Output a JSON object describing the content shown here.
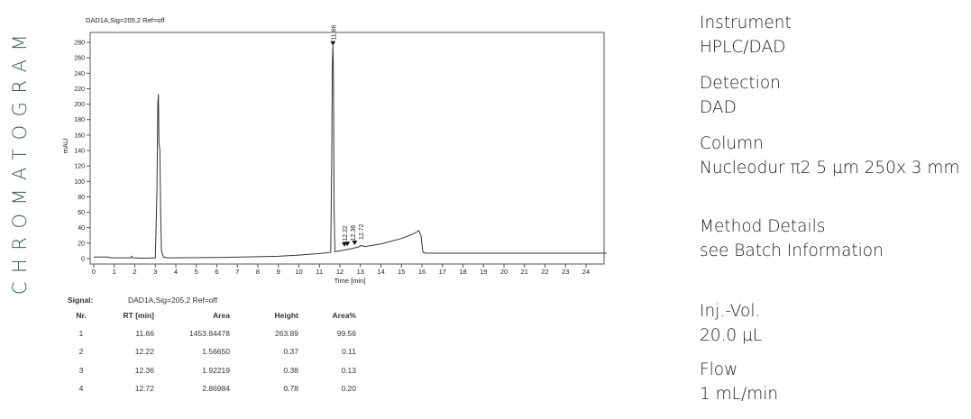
{
  "side_title": "CHROMATOGRAM",
  "chart_data": {
    "type": "line",
    "title": "DAD1A,Sig=205,2  Ref=off",
    "xlabel": "Time [min]",
    "ylabel": "mAU",
    "xlim": [
      0,
      25
    ],
    "ylim": [
      -5,
      295
    ],
    "xticks": [
      0,
      1,
      2,
      3,
      4,
      5,
      6,
      7,
      8,
      9,
      10,
      11,
      12,
      13,
      14,
      15,
      16,
      17,
      18,
      19,
      20,
      21,
      22,
      23,
      24
    ],
    "yticks": [
      0,
      20,
      40,
      60,
      80,
      100,
      120,
      140,
      160,
      180,
      200,
      220,
      240,
      260,
      280
    ],
    "grid": false,
    "series": [
      {
        "x": [
          0,
          0.7,
          0.8,
          1.8,
          1.85,
          1.9,
          2.5,
          3.0,
          3.08,
          3.12,
          3.15,
          3.18,
          3.22,
          3.26,
          3.3,
          3.4,
          3.6,
          4,
          6,
          8,
          9,
          10,
          11,
          11.55,
          11.6,
          11.63,
          11.66,
          11.69,
          11.72,
          11.76,
          11.85,
          12,
          12.5,
          12.9,
          13.05,
          13.2,
          14,
          15,
          15.5,
          15.85,
          15.95,
          16.05,
          16.2,
          17,
          20,
          25
        ],
        "y": [
          2,
          2,
          1,
          1,
          3,
          1,
          0.5,
          1,
          90,
          200,
          213,
          150,
          140,
          60,
          10,
          2,
          1,
          1,
          1.5,
          2.5,
          3,
          4.5,
          6.5,
          8,
          120,
          250,
          277,
          230,
          60,
          9,
          9.5,
          10,
          12.5,
          15,
          17,
          15.5,
          19,
          26,
          31,
          36,
          30,
          8,
          7,
          7,
          7,
          7
        ]
      }
    ],
    "peak_labels": [
      {
        "rt": "11.66",
        "x": 11.66,
        "y": 277
      },
      {
        "rt": "12.22",
        "x": 12.22,
        "y": 12
      },
      {
        "rt": "12.36",
        "x": 12.36,
        "y": 12.5
      },
      {
        "rt": "12.72",
        "x": 12.72,
        "y": 14
      }
    ]
  },
  "table": {
    "signal_label": "Signal:",
    "signal_value": "DAD1A,Sig=205,2  Ref=off",
    "headers": [
      "Nr.",
      "RT [min]",
      "Area",
      "Height",
      "Area%"
    ],
    "rows": [
      [
        "1",
        "11.66",
        "1453.84478",
        "263.89",
        "99.56"
      ],
      [
        "2",
        "12.22",
        "1.56650",
        "0.37",
        "0.11"
      ],
      [
        "3",
        "12.36",
        "1.92219",
        "0.38",
        "0.13"
      ],
      [
        "4",
        "12.72",
        "2.86984",
        "0.78",
        "0.20"
      ]
    ]
  },
  "info": [
    {
      "label": "Instrument",
      "value": "HPLC/DAD"
    },
    {
      "label": "Detection",
      "value": "DAD"
    },
    {
      "label": "Column",
      "value": "Nucleodur π2 5 µm 250x 3 mm"
    },
    {
      "label": "Method Details",
      "value": "see Batch Information"
    },
    {
      "label": "Inj.-Vol.",
      "value": "20.0 µL"
    },
    {
      "label": "Flow",
      "value": "1 mL/min"
    }
  ]
}
